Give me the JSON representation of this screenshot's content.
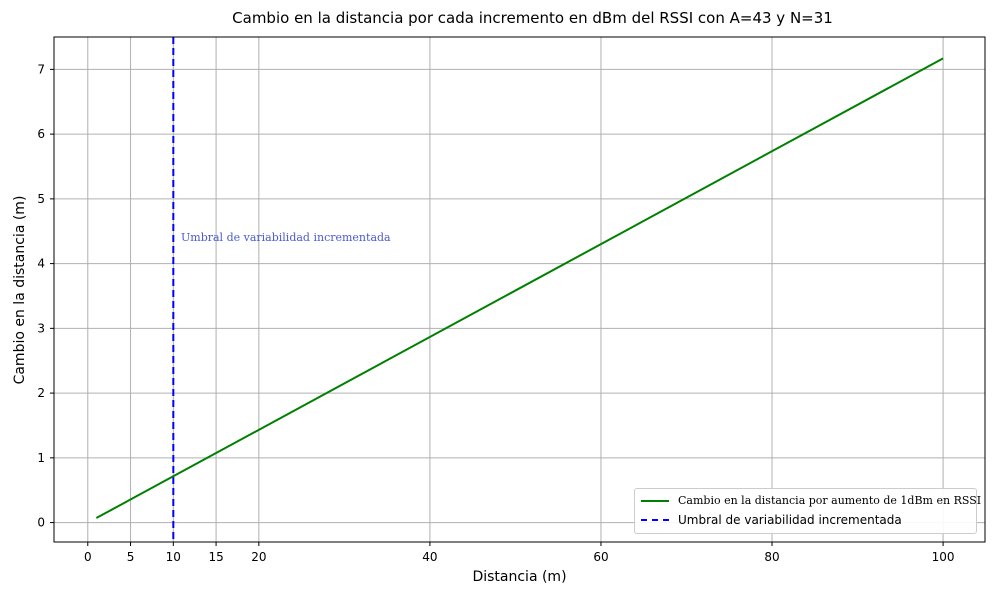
{
  "chart_data": {
    "type": "line",
    "title": "Cambio en la distancia por cada incremento en dBm del RSSI con A=43 y N=31",
    "xlabel": "Distancia (m)",
    "ylabel": "Cambio en la distancia (m)",
    "xlim": [
      -3.95,
      104.9
    ],
    "ylim": [
      -0.3,
      7.5
    ],
    "xticks": [
      0,
      5,
      10,
      15,
      20,
      40,
      60,
      80,
      100
    ],
    "yticks": [
      0,
      1,
      2,
      3,
      4,
      5,
      6,
      7
    ],
    "grid": true,
    "legend_position": "lower-right",
    "series": [
      {
        "name": "Cambio en la distancia por aumento de 1dBm en RSSI",
        "color": "#008000",
        "style": "solid",
        "x": [
          1,
          100
        ],
        "y": [
          0.07,
          7.17
        ]
      }
    ],
    "threshold": {
      "name": "Umbral de variabilidad incrementada",
      "x": 10,
      "color": "#0000ff",
      "style": "dashed"
    },
    "annotation": {
      "text": "Umbral de variabilidad incrementada",
      "color": "#4a5ad0"
    }
  }
}
